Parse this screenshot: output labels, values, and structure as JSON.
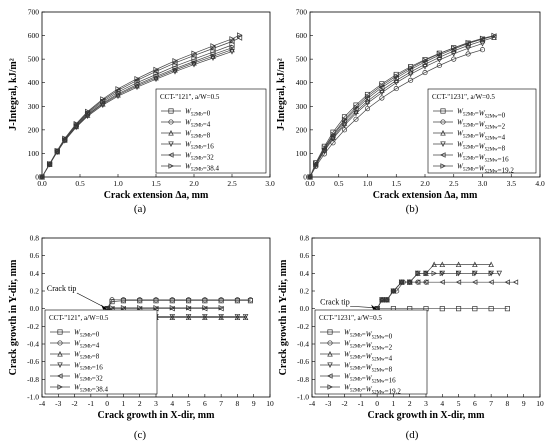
{
  "charts": [
    {
      "id": "a",
      "caption": "(a)",
      "xlabel": "Crack extension Δa, mm",
      "ylabel": "J-Integral, kJ/m²",
      "legend_title": "CCT-\"121\", a/W=0.5",
      "legend_entries": [
        "W52Mb=0",
        "W52Mb=4",
        "W52Mb=8",
        "W52Mb=16",
        "W52Mb=32",
        "W52Mb=38.4"
      ]
    },
    {
      "id": "b",
      "caption": "(b)",
      "xlabel": "Crack extension Δa, mm",
      "ylabel": "J-Integral, kJ/m²",
      "legend_title": "CCT-\"1231\", a/W=0.5",
      "legend_entries": [
        "W52Mb=W52Mw=0",
        "W52Mb=W52Mw=2",
        "W52Mb=W52Mw=4",
        "W52Mb=W52Mw=8",
        "W52Mb=W52Mw=16",
        "W52Mb=W52Mw=19.2"
      ]
    },
    {
      "id": "c",
      "caption": "(c)",
      "xlabel": "Crack growth in X-dir, mm",
      "ylabel": "Crack growth in Y-dir, mm",
      "legend_title": "CCT-\"121\", a/W=0.5",
      "annotation": "Crack tip",
      "legend_entries": [
        "W52Mb=0",
        "W52Mb=4",
        "W52Mb=8",
        "W52Mb=16",
        "W52Mb=32",
        "W52Mb=38.4"
      ]
    },
    {
      "id": "d",
      "caption": "(d)",
      "xlabel": "Crack growth in X-dir, mm",
      "ylabel": "Crack growth in Y-dir, mm",
      "legend_title": "CCT-\"1231\", a/W=0.5",
      "annotation": "Crack tip",
      "legend_entries": [
        "W52Mb=W52Mw=0",
        "W52Mb=W52Mw=2",
        "W52Mb=W52Mw=4",
        "W52Mb=W52Mw=8",
        "W52Mb=W52Mw=16",
        "W52Mb=W52Mw=19.2"
      ]
    }
  ],
  "chart_data": [
    {
      "type": "line",
      "title": "",
      "xlabel": "Crack extension Δa, mm",
      "ylabel": "J-Integral, kJ/m²",
      "xlim": [
        0,
        3.0
      ],
      "ylim": [
        0,
        700
      ],
      "xticks": [
        0.0,
        0.5,
        1.0,
        1.5,
        2.0,
        2.5,
        3.0
      ],
      "yticks": [
        0,
        100,
        200,
        300,
        400,
        500,
        600,
        700
      ],
      "grid": false,
      "legend_position": "bottom-right",
      "series": [
        {
          "name": "W52Mb=0",
          "marker": "square",
          "x": [
            0,
            0.1,
            0.2,
            0.3,
            0.45,
            0.6,
            0.8,
            1.0,
            1.25,
            1.5,
            1.75,
            2.0,
            2.25,
            2.5
          ],
          "y": [
            0,
            55,
            110,
            160,
            220,
            270,
            320,
            360,
            400,
            435,
            470,
            500,
            530,
            560
          ]
        },
        {
          "name": "W52Mb=4",
          "marker": "circle",
          "x": [
            0,
            0.1,
            0.2,
            0.3,
            0.45,
            0.6,
            0.8,
            1.0,
            1.25,
            1.5,
            1.75,
            2.0,
            2.25,
            2.5
          ],
          "y": [
            0,
            54,
            108,
            157,
            216,
            265,
            314,
            353,
            392,
            427,
            460,
            490,
            520,
            548
          ]
        },
        {
          "name": "W52Mb=8",
          "marker": "triangle-up",
          "x": [
            0,
            0.1,
            0.2,
            0.3,
            0.45,
            0.6,
            0.8,
            1.0,
            1.25,
            1.5,
            1.75,
            2.0,
            2.25,
            2.5
          ],
          "y": [
            0,
            54,
            107,
            156,
            214,
            262,
            310,
            348,
            387,
            421,
            454,
            484,
            512,
            540
          ]
        },
        {
          "name": "W52Mb=16",
          "marker": "triangle-down",
          "x": [
            0,
            0.1,
            0.2,
            0.3,
            0.45,
            0.6,
            0.8,
            1.0,
            1.25,
            1.5,
            1.75,
            2.0,
            2.25,
            2.5
          ],
          "y": [
            0,
            53,
            106,
            154,
            211,
            258,
            305,
            343,
            381,
            415,
            447,
            477,
            505,
            532
          ]
        },
        {
          "name": "W52Mb=32",
          "marker": "triangle-left",
          "x": [
            0,
            0.1,
            0.2,
            0.3,
            0.45,
            0.6,
            0.8,
            1.0,
            1.25,
            1.5,
            1.75,
            2.0,
            2.25,
            2.5,
            2.6
          ],
          "y": [
            0,
            55,
            111,
            162,
            223,
            274,
            326,
            368,
            410,
            448,
            484,
            515,
            545,
            575,
            590
          ]
        },
        {
          "name": "W52Mb=38.4",
          "marker": "triangle-right",
          "x": [
            0,
            0.1,
            0.2,
            0.3,
            0.45,
            0.6,
            0.8,
            1.0,
            1.25,
            1.5,
            1.75,
            2.0,
            2.25,
            2.5,
            2.6
          ],
          "y": [
            0,
            56,
            112,
            164,
            226,
            278,
            331,
            374,
            417,
            456,
            493,
            525,
            556,
            586,
            602
          ]
        }
      ]
    },
    {
      "type": "line",
      "title": "",
      "xlabel": "Crack extension Δa, mm",
      "ylabel": "J-Integral, kJ/m²",
      "xlim": [
        0,
        4.0
      ],
      "ylim": [
        0,
        700
      ],
      "xticks": [
        0.0,
        0.5,
        1.0,
        1.5,
        2.0,
        2.5,
        3.0,
        3.5,
        4.0
      ],
      "yticks": [
        0,
        100,
        200,
        300,
        400,
        500,
        600,
        700
      ],
      "grid": false,
      "legend_position": "bottom-right",
      "series": [
        {
          "name": "W52Mb=W52Mw=0",
          "marker": "square",
          "x": [
            0,
            0.1,
            0.25,
            0.4,
            0.6,
            0.8,
            1.0,
            1.25,
            1.5,
            1.75,
            2.0,
            2.25,
            2.5,
            2.75,
            3.0
          ],
          "y": [
            0,
            60,
            130,
            190,
            255,
            305,
            350,
            395,
            435,
            468,
            498,
            525,
            548,
            568,
            585
          ]
        },
        {
          "name": "W52Mb=W52Mw=2",
          "marker": "circle",
          "x": [
            0,
            0.1,
            0.25,
            0.4,
            0.6,
            0.8,
            1.0,
            1.25,
            1.5,
            1.75,
            2.0,
            2.25,
            2.5,
            2.75,
            3.0
          ],
          "y": [
            0,
            45,
            98,
            145,
            200,
            245,
            290,
            335,
            375,
            410,
            443,
            473,
            500,
            522,
            540
          ]
        },
        {
          "name": "W52Mb=W52Mw=4",
          "marker": "triangle-up",
          "x": [
            0,
            0.1,
            0.25,
            0.4,
            0.6,
            0.8,
            1.0,
            1.25,
            1.5,
            1.75,
            2.0,
            2.25,
            2.5,
            2.75,
            3.0,
            3.2
          ],
          "y": [
            0,
            52,
            115,
            168,
            228,
            278,
            322,
            368,
            410,
            446,
            478,
            508,
            535,
            558,
            578,
            592
          ]
        },
        {
          "name": "W52Mb=W52Mw=8",
          "marker": "triangle-down",
          "x": [
            0,
            0.1,
            0.25,
            0.4,
            0.6,
            0.8,
            1.0,
            1.25,
            1.5,
            1.75,
            2.0,
            2.25,
            2.5,
            2.75,
            3.0
          ],
          "y": [
            0,
            50,
            110,
            162,
            220,
            270,
            313,
            358,
            400,
            436,
            468,
            497,
            523,
            546,
            566
          ]
        },
        {
          "name": "W52Mb=W52Mw=16",
          "marker": "triangle-left",
          "x": [
            0,
            0.1,
            0.25,
            0.4,
            0.6,
            0.8,
            1.0,
            1.25,
            1.5,
            1.75,
            2.0,
            2.25,
            2.5,
            2.75,
            3.0,
            3.2
          ],
          "y": [
            0,
            55,
            120,
            175,
            237,
            288,
            333,
            380,
            420,
            456,
            488,
            517,
            543,
            566,
            585,
            598
          ]
        },
        {
          "name": "W52Mb=W52Mw=19.2",
          "marker": "triangle-right",
          "x": [
            0,
            0.1,
            0.25,
            0.4,
            0.6,
            0.8,
            1.0,
            1.25,
            1.5,
            1.75,
            2.0,
            2.25,
            2.5,
            2.75,
            3.0,
            3.2
          ],
          "y": [
            0,
            57,
            124,
            180,
            244,
            296,
            342,
            388,
            428,
            463,
            495,
            523,
            548,
            570,
            588,
            600
          ]
        }
      ]
    },
    {
      "type": "line",
      "title": "",
      "xlabel": "Crack growth in X-dir, mm",
      "ylabel": "Crack growth in Y-dir, mm",
      "xlim": [
        -4,
        10
      ],
      "ylim": [
        -1.0,
        0.8
      ],
      "xticks": [
        -4,
        -3,
        -2,
        -1,
        0,
        1,
        2,
        3,
        4,
        5,
        6,
        7,
        8,
        9,
        10
      ],
      "yticks": [
        -1.0,
        -0.8,
        -0.6,
        -0.4,
        -0.2,
        0.0,
        0.2,
        0.4,
        0.6,
        0.8
      ],
      "grid": false,
      "legend_position": "bottom-left",
      "series": [
        {
          "name": "W52Mb=0",
          "marker": "square",
          "x": [
            0,
            0.3,
            1,
            2,
            3,
            4,
            5,
            6,
            7,
            8,
            8.8
          ],
          "y": [
            0,
            0.08,
            0.09,
            0.09,
            0.09,
            0.09,
            0.09,
            0.09,
            0.09,
            0.09,
            0.09
          ]
        },
        {
          "name": "W52Mb=4",
          "marker": "circle",
          "x": [
            0,
            0.3,
            1,
            2,
            3,
            4,
            5,
            6,
            7,
            8,
            8.8
          ],
          "y": [
            0,
            0.1,
            0.1,
            0.1,
            0.1,
            0.1,
            0.1,
            0.1,
            0.1,
            0.1,
            0.1
          ]
        },
        {
          "name": "W52Mb=8",
          "marker": "triangle-up",
          "x": [
            0,
            0.3,
            1,
            2,
            3,
            4,
            5,
            6,
            7,
            8,
            8.5
          ],
          "y": [
            0,
            -0.1,
            -0.1,
            -0.1,
            -0.1,
            -0.1,
            -0.1,
            -0.1,
            -0.1,
            -0.1,
            -0.1
          ]
        },
        {
          "name": "W52Mb=16",
          "marker": "triangle-down",
          "x": [
            0,
            0.3,
            1,
            2,
            3,
            4,
            5,
            6,
            7,
            8,
            8.5
          ],
          "y": [
            0,
            -0.09,
            -0.09,
            -0.09,
            -0.09,
            -0.09,
            -0.09,
            -0.09,
            -0.09,
            -0.09,
            -0.09
          ]
        },
        {
          "name": "W52Mb=32",
          "marker": "triangle-left",
          "x": [
            0,
            0.3,
            1,
            2,
            3,
            4,
            5,
            6,
            7
          ],
          "y": [
            0,
            0.0,
            0.0,
            0.0,
            0.0,
            0.0,
            0.0,
            0.0,
            0.0
          ]
        },
        {
          "name": "W52Mb=38.4",
          "marker": "triangle-right",
          "x": [
            0,
            0.3,
            1,
            2,
            3,
            4,
            5,
            6,
            7
          ],
          "y": [
            0,
            0.01,
            0.01,
            0.01,
            0.01,
            0.01,
            0.01,
            0.01,
            0.01
          ]
        }
      ]
    },
    {
      "type": "line",
      "title": "",
      "xlabel": "Crack growth in X-dir, mm",
      "ylabel": "Crack growth in Y-dir, mm",
      "xlim": [
        -4,
        10
      ],
      "ylim": [
        -1.0,
        0.8
      ],
      "xticks": [
        -4,
        -3,
        -2,
        -1,
        0,
        1,
        2,
        3,
        4,
        5,
        6,
        7,
        8,
        9,
        10
      ],
      "yticks": [
        -1.0,
        -0.8,
        -0.6,
        -0.4,
        -0.2,
        0.0,
        0.2,
        0.4,
        0.6,
        0.8
      ],
      "grid": false,
      "legend_position": "bottom-left",
      "series": [
        {
          "name": "W52Mb=W52Mw=0",
          "marker": "square",
          "x": [
            0,
            1,
            2,
            3,
            4,
            5,
            6,
            7,
            8
          ],
          "y": [
            0,
            0,
            0,
            0,
            0,
            0,
            0,
            0,
            0
          ]
        },
        {
          "name": "W52Mb=W52Mw=2",
          "marker": "circle",
          "x": [
            0,
            0.3,
            0.6,
            1.0,
            1.2,
            1.6,
            2.0,
            2.5,
            3.0
          ],
          "y": [
            0,
            0.1,
            0.1,
            0.2,
            0.2,
            0.3,
            0.3,
            0.3,
            0.3
          ]
        },
        {
          "name": "W52Mb=W52Mw=4",
          "marker": "triangle-up",
          "x": [
            0,
            0.3,
            0.6,
            1.0,
            1.5,
            2.0,
            2.5,
            3.0,
            3.5,
            4.0,
            5.0,
            6.0,
            7.0
          ],
          "y": [
            0,
            0.1,
            0.1,
            0.2,
            0.3,
            0.3,
            0.4,
            0.4,
            0.5,
            0.5,
            0.5,
            0.5,
            0.5
          ]
        },
        {
          "name": "W52Mb=W52Mw=8",
          "marker": "triangle-down",
          "x": [
            0,
            0.3,
            0.6,
            1.0,
            1.5,
            2.0,
            2.5,
            3.0,
            4.0,
            5.0,
            6.0,
            7.0,
            7.5
          ],
          "y": [
            0,
            0.1,
            0.1,
            0.2,
            0.3,
            0.3,
            0.4,
            0.4,
            0.4,
            0.4,
            0.4,
            0.4,
            0.4
          ]
        },
        {
          "name": "W52Mb=W52Mw=16",
          "marker": "triangle-left",
          "x": [
            0,
            0.3,
            0.6,
            1.0,
            1.5,
            2.0,
            2.5,
            3.0,
            4.0,
            5.0,
            6.0,
            7.0,
            8.0,
            8.5
          ],
          "y": [
            0,
            0.1,
            0.1,
            0.2,
            0.3,
            0.3,
            0.3,
            0.3,
            0.3,
            0.3,
            0.3,
            0.3,
            0.3,
            0.3
          ]
        },
        {
          "name": "W52Mb=W52Mw=19.2",
          "marker": "triangle-right",
          "x": [
            0,
            0.3,
            0.6,
            1.0,
            1.5,
            2.0,
            2.5,
            3.0,
            3.5,
            4.0,
            5.0,
            6.0,
            7.0
          ],
          "y": [
            0,
            0.1,
            0.1,
            0.2,
            0.3,
            0.3,
            0.4,
            0.4,
            0.4,
            0.4,
            0.4,
            0.4,
            0.4
          ]
        }
      ]
    }
  ]
}
